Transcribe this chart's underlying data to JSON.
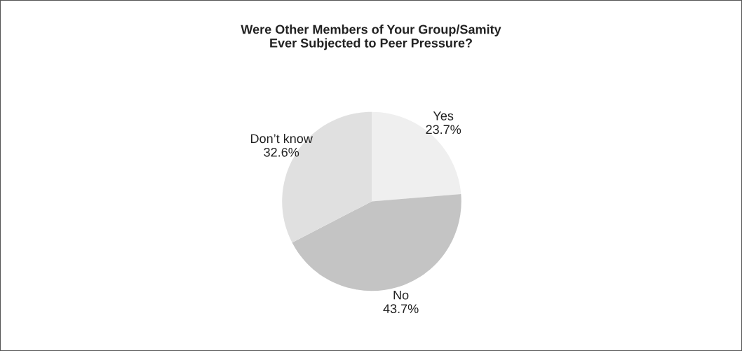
{
  "chart_data": {
    "type": "pie",
    "title": "Were Other Members of Your Group/Samity\nEver Subjected to Peer Pressure?",
    "categories": [
      "Yes",
      "No",
      "Don’t know"
    ],
    "values": [
      23.7,
      43.7,
      32.6
    ],
    "value_labels": [
      "23.7%",
      "43.7%",
      "32.6%"
    ],
    "colors": [
      "#efefef",
      "#c4c4c4",
      "#e0e0e0"
    ]
  }
}
